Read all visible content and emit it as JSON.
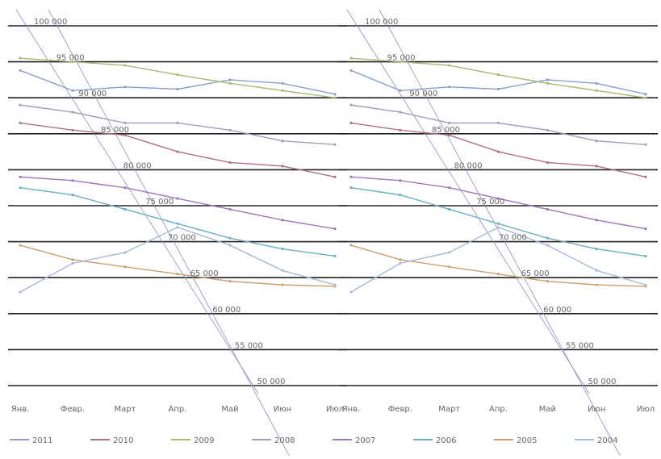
{
  "chart_data": {
    "type": "line",
    "title": "",
    "xlabel": "",
    "ylabel": "",
    "categories": [
      "Янв.",
      "Февр.",
      "Март",
      "Апр.",
      "Май",
      "Июн",
      "Июл"
    ],
    "y_ticks": [
      "50 000",
      "55 000",
      "60 000",
      "65 000",
      "70 000",
      "75 000",
      "80 000",
      "85 000",
      "90 000",
      "95 000",
      "100 000"
    ],
    "ylim": [
      50000,
      100000
    ],
    "grid": true,
    "legend": "bottom",
    "legend_entries": [
      "2011",
      "2010",
      "2009",
      "2008",
      "2007",
      "2006",
      "2005",
      "2004"
    ],
    "series": [
      {
        "name": "2011",
        "color": "#8aa0c8",
        "values": [
          93800,
          91000,
          91500,
          91200,
          92500,
          92000,
          90500
        ]
      },
      {
        "name": "2010",
        "color": "#b07080",
        "values": [
          86500,
          85500,
          84800,
          82500,
          81000,
          80500,
          79000
        ]
      },
      {
        "name": "2009",
        "color": "#a8b870",
        "values": [
          95500,
          95000,
          94500,
          93200,
          92000,
          91000,
          90000
        ]
      },
      {
        "name": "2008",
        "color": "#9aa0b8",
        "values": [
          89000,
          88000,
          86500,
          86500,
          85500,
          84000,
          83500
        ]
      },
      {
        "name": "2007",
        "color": "#9a78b8",
        "values": [
          79000,
          78500,
          77500,
          76000,
          74500,
          73000,
          71800
        ]
      },
      {
        "name": "2006",
        "color": "#6ab0c0",
        "values": [
          77500,
          76500,
          74500,
          72500,
          70500,
          69000,
          68000
        ]
      },
      {
        "name": "2005",
        "color": "#c8a070",
        "values": [
          69500,
          67500,
          66500,
          65500,
          64500,
          64000,
          63800
        ]
      },
      {
        "name": "2004",
        "color": "#a8b8d8",
        "values": [
          63000,
          67000,
          68500,
          72000,
          69500,
          66000,
          64000
        ]
      }
    ]
  }
}
